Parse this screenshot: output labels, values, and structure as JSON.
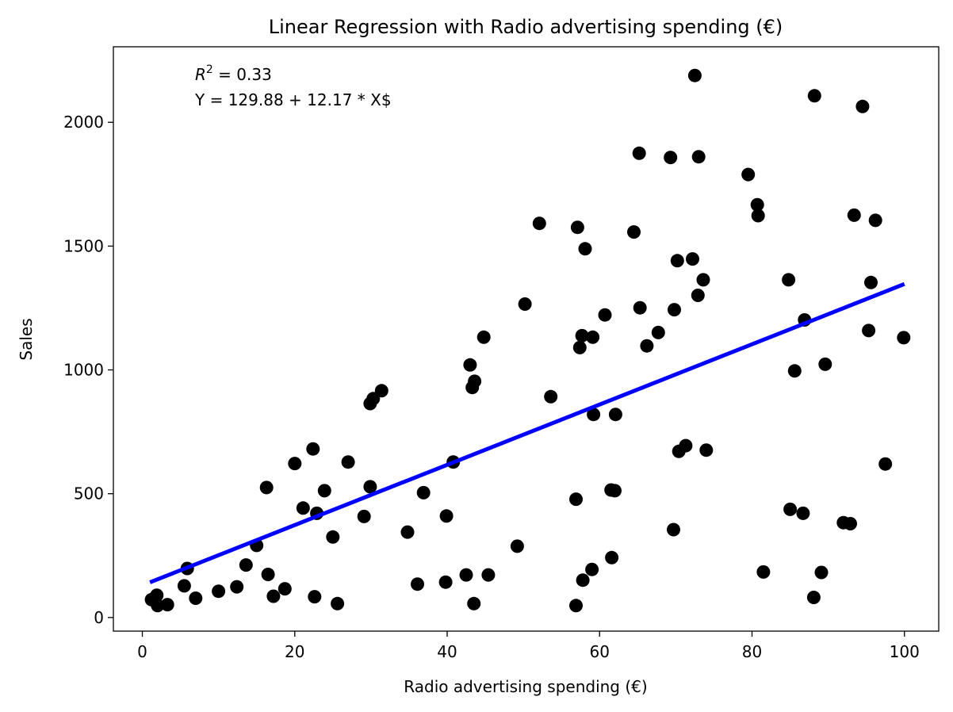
{
  "chart_data": {
    "type": "scatter",
    "title": "Linear Regression with Radio advertising spending (€)",
    "xlabel": "Radio advertising spending (€)",
    "ylabel": "Sales",
    "xlim": [
      -3.8,
      104.5
    ],
    "ylim": [
      -55,
      2305
    ],
    "xticks": [
      0,
      20,
      40,
      60,
      80,
      100
    ],
    "yticks": [
      0,
      500,
      1000,
      1500,
      2000
    ],
    "grid": false,
    "annotations": {
      "r2_label": "R",
      "r2_sup": "2",
      "r2_value": " = 0.33",
      "equation": "Y = 129.88 + 12.17 * X$"
    },
    "regression": {
      "intercept": 129.88,
      "slope": 12.17,
      "x_range": [
        1,
        100
      ],
      "color": "#0000ff"
    },
    "point_color": "#000000",
    "points": [
      [
        1.2,
        72
      ],
      [
        1.9,
        90
      ],
      [
        2.0,
        48
      ],
      [
        3.3,
        52
      ],
      [
        5.5,
        128
      ],
      [
        5.9,
        198
      ],
      [
        7.0,
        78
      ],
      [
        10.0,
        106
      ],
      [
        12.4,
        124
      ],
      [
        13.6,
        212
      ],
      [
        15.0,
        291
      ],
      [
        16.3,
        525
      ],
      [
        16.5,
        174
      ],
      [
        17.2,
        86
      ],
      [
        18.7,
        116
      ],
      [
        20.0,
        622
      ],
      [
        21.1,
        442
      ],
      [
        22.4,
        681
      ],
      [
        22.6,
        84
      ],
      [
        22.9,
        421
      ],
      [
        23.9,
        512
      ],
      [
        25.0,
        325
      ],
      [
        25.6,
        56
      ],
      [
        27.0,
        628
      ],
      [
        29.1,
        408
      ],
      [
        29.9,
        528
      ],
      [
        29.9,
        864
      ],
      [
        30.3,
        884
      ],
      [
        31.4,
        916
      ],
      [
        34.8,
        345
      ],
      [
        36.1,
        135
      ],
      [
        36.9,
        504
      ],
      [
        39.8,
        143
      ],
      [
        39.9,
        410
      ],
      [
        40.8,
        628
      ],
      [
        42.5,
        172
      ],
      [
        43.0,
        1020
      ],
      [
        43.3,
        929
      ],
      [
        43.5,
        56
      ],
      [
        43.6,
        954
      ],
      [
        44.8,
        1132
      ],
      [
        45.4,
        172
      ],
      [
        49.2,
        288
      ],
      [
        50.2,
        1266
      ],
      [
        52.1,
        1592
      ],
      [
        53.6,
        892
      ],
      [
        56.9,
        48
      ],
      [
        56.9,
        478
      ],
      [
        57.1,
        1576
      ],
      [
        57.4,
        1090
      ],
      [
        57.7,
        1138
      ],
      [
        57.8,
        151
      ],
      [
        58.1,
        1489
      ],
      [
        59.0,
        194
      ],
      [
        59.1,
        1132
      ],
      [
        59.2,
        820
      ],
      [
        60.7,
        1222
      ],
      [
        61.5,
        515
      ],
      [
        61.6,
        242
      ],
      [
        62.0,
        512
      ],
      [
        62.1,
        820
      ],
      [
        64.5,
        1557
      ],
      [
        65.2,
        1875
      ],
      [
        65.3,
        1251
      ],
      [
        66.2,
        1097
      ],
      [
        67.7,
        1151
      ],
      [
        69.3,
        1858
      ],
      [
        69.7,
        355
      ],
      [
        69.8,
        1243
      ],
      [
        70.2,
        1441
      ],
      [
        70.4,
        671
      ],
      [
        71.3,
        694
      ],
      [
        72.2,
        1448
      ],
      [
        72.5,
        2189
      ],
      [
        72.9,
        1301
      ],
      [
        73.0,
        1861
      ],
      [
        73.6,
        1364
      ],
      [
        74.0,
        676
      ],
      [
        79.5,
        1789
      ],
      [
        80.7,
        1667
      ],
      [
        80.8,
        1623
      ],
      [
        81.5,
        184
      ],
      [
        84.8,
        1364
      ],
      [
        85.0,
        437
      ],
      [
        85.6,
        996
      ],
      [
        86.7,
        421
      ],
      [
        86.9,
        1202
      ],
      [
        88.1,
        81
      ],
      [
        88.2,
        2107
      ],
      [
        89.1,
        182
      ],
      [
        89.6,
        1023
      ],
      [
        92.0,
        383
      ],
      [
        92.9,
        379
      ],
      [
        93.4,
        1625
      ],
      [
        94.5,
        2064
      ],
      [
        95.3,
        1159
      ],
      [
        95.6,
        1353
      ],
      [
        96.2,
        1604
      ],
      [
        97.5,
        620
      ],
      [
        99.9,
        1130
      ]
    ]
  }
}
